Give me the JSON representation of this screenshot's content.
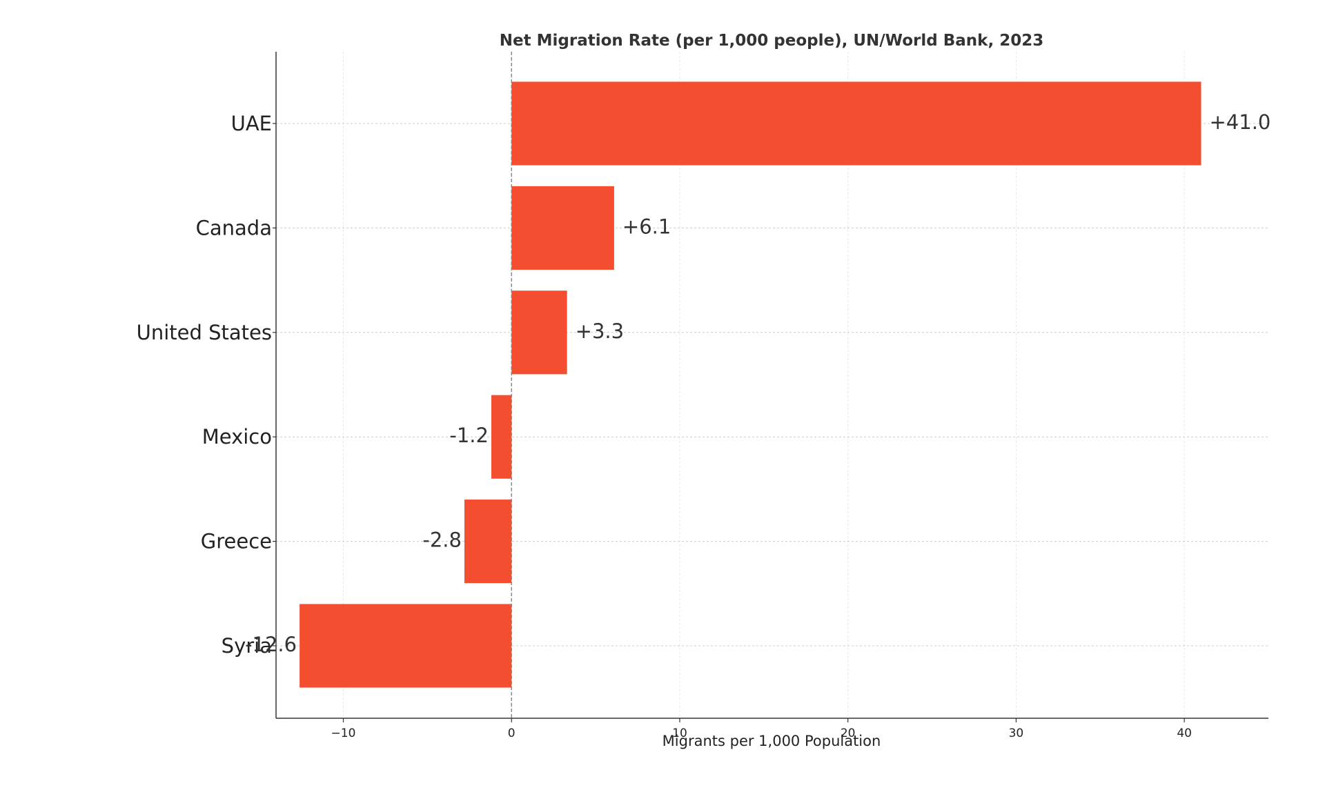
{
  "chart_data": {
    "type": "bar",
    "orientation": "horizontal",
    "title": "Net Migration Rate (per 1,000 people), UN/World Bank, 2023",
    "xlabel": "Migrants per 1,000 Population",
    "ylabel": "",
    "categories": [
      "UAE",
      "Canada",
      "United States",
      "Mexico",
      "Greece",
      "Syria"
    ],
    "values": [
      41.0,
      6.1,
      3.3,
      -1.2,
      -2.8,
      -12.6
    ],
    "value_labels": [
      "+41.0",
      "+6.1",
      "+3.3",
      "-1.2",
      "-2.8",
      "-12.6"
    ],
    "xlim": [
      -14,
      45
    ],
    "xticks": [
      -10,
      0,
      10,
      20,
      30,
      40
    ],
    "xtick_labels": [
      "−10",
      "0",
      "10",
      "20",
      "30",
      "40"
    ],
    "grid": true,
    "zero_line": "dashed",
    "bar_color": "#f44e30"
  }
}
